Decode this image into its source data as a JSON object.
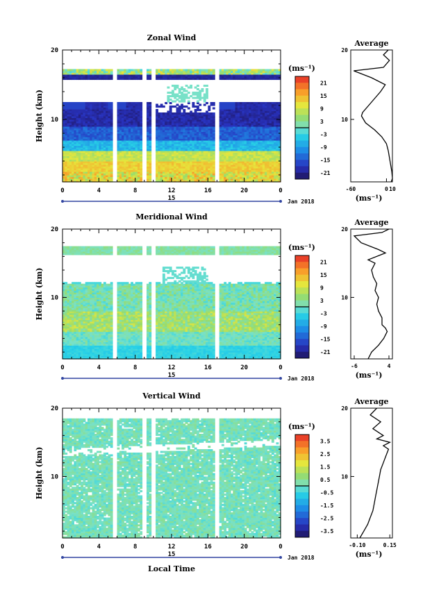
{
  "colorbar_unit": "(ms⁻¹)",
  "date_label": "Jan 2018",
  "day_label": "15",
  "xlabel": "Local Time",
  "average_title": "Average",
  "chart_data": [
    {
      "type": "heatmap",
      "title": "Zonal Wind",
      "ylabel": "Height (km)",
      "x_ticks": [
        "0",
        "4",
        "8",
        "12",
        "16",
        "20",
        "0"
      ],
      "y_ticks": [
        "10",
        "20"
      ],
      "ylim": [
        1,
        20
      ],
      "xlim": [
        0,
        24
      ],
      "colorbar_ticks": [
        "21",
        "15",
        "9",
        "3",
        "-3",
        "-9",
        "-15",
        "-21"
      ],
      "colorbar_range": [
        -24,
        24
      ],
      "profile": {
        "title": "Average",
        "x_ticks": [
          "-60",
          "0",
          "10"
        ],
        "xlim": [
          -60,
          10
        ],
        "y_ticks": [
          "10",
          "20"
        ],
        "xlabel": "(ms⁻¹)",
        "points": [
          [
            8,
            1
          ],
          [
            10,
            1.5
          ],
          [
            9,
            2.5
          ],
          [
            7,
            3.5
          ],
          [
            5,
            4.5
          ],
          [
            3,
            5.5
          ],
          [
            0,
            6.5
          ],
          [
            -8,
            7.5
          ],
          [
            -20,
            8.5
          ],
          [
            -35,
            9.5
          ],
          [
            -42,
            10.5
          ],
          [
            -40,
            11
          ],
          [
            -30,
            12
          ],
          [
            -20,
            13
          ],
          [
            -10,
            14
          ],
          [
            -2,
            15
          ],
          [
            -25,
            16
          ],
          [
            -55,
            17
          ],
          [
            -5,
            17.5
          ],
          [
            5,
            18.5
          ],
          [
            -5,
            19.3
          ],
          [
            3,
            20
          ]
        ]
      }
    },
    {
      "type": "heatmap",
      "title": "Meridional Wind",
      "ylabel": "Height (km)",
      "x_ticks": [
        "0",
        "4",
        "8",
        "12",
        "16",
        "20",
        "0"
      ],
      "y_ticks": [
        "10",
        "20"
      ],
      "ylim": [
        1,
        20
      ],
      "xlim": [
        0,
        24
      ],
      "colorbar_ticks": [
        "21",
        "15",
        "9",
        "3",
        "-3",
        "-9",
        "-15",
        "-21"
      ],
      "colorbar_range": [
        -24,
        24
      ],
      "profile": {
        "title": "Average",
        "x_ticks": [
          "-6",
          "4"
        ],
        "xlim": [
          -7,
          5
        ],
        "y_ticks": [
          "10",
          "20"
        ],
        "xlabel": "(ms⁻¹)",
        "points": [
          [
            -2,
            1
          ],
          [
            -1,
            2
          ],
          [
            1,
            3
          ],
          [
            2.5,
            4
          ],
          [
            3.5,
            5
          ],
          [
            3,
            5.5
          ],
          [
            2,
            6
          ],
          [
            2,
            7
          ],
          [
            1,
            8
          ],
          [
            0.5,
            9
          ],
          [
            1,
            10
          ],
          [
            0,
            11
          ],
          [
            0.5,
            12
          ],
          [
            -0.5,
            13
          ],
          [
            -1,
            14
          ],
          [
            0,
            15
          ],
          [
            -2,
            15.5
          ],
          [
            3,
            16.5
          ],
          [
            1,
            17
          ],
          [
            -4,
            18
          ],
          [
            -6,
            19
          ],
          [
            2,
            19.5
          ],
          [
            4,
            20
          ]
        ]
      }
    },
    {
      "type": "heatmap",
      "title": "Vertical Wind",
      "ylabel": "Height (km)",
      "x_ticks": [
        "0",
        "4",
        "8",
        "12",
        "16",
        "20",
        "0"
      ],
      "y_ticks": [
        "10",
        "20"
      ],
      "ylim": [
        1,
        20
      ],
      "xlim": [
        0,
        24
      ],
      "colorbar_ticks": [
        "3.5",
        "2.5",
        "1.5",
        "0.5",
        "-0.5",
        "-1.5",
        "-2.5",
        "-3.5"
      ],
      "colorbar_range": [
        -4,
        4
      ],
      "profile": {
        "title": "Average",
        "x_ticks": [
          "-0.10",
          "0.15"
        ],
        "xlim": [
          -0.15,
          0.17
        ],
        "y_ticks": [
          "10",
          "20"
        ],
        "xlabel": "(ms⁻¹)",
        "points": [
          [
            -0.08,
            1
          ],
          [
            -0.05,
            2
          ],
          [
            -0.02,
            3
          ],
          [
            0,
            4
          ],
          [
            0.02,
            5
          ],
          [
            0.03,
            6
          ],
          [
            0.04,
            7
          ],
          [
            0.05,
            8
          ],
          [
            0.06,
            9
          ],
          [
            0.07,
            10
          ],
          [
            0.08,
            11
          ],
          [
            0.1,
            12
          ],
          [
            0.12,
            13
          ],
          [
            0.14,
            14
          ],
          [
            0.1,
            14.5
          ],
          [
            0.15,
            15
          ],
          [
            0.05,
            15.5
          ],
          [
            0.1,
            16
          ],
          [
            0.02,
            17
          ],
          [
            0.08,
            18
          ],
          [
            0,
            19
          ],
          [
            0.05,
            20
          ]
        ]
      }
    }
  ]
}
